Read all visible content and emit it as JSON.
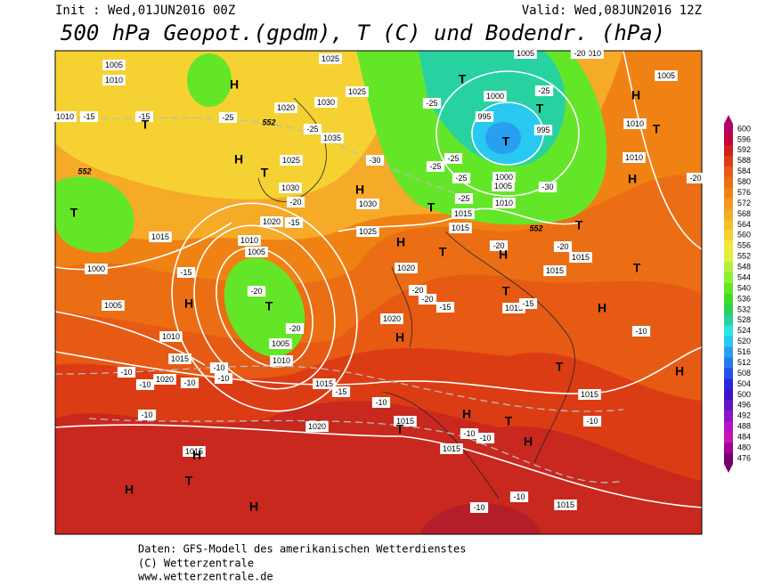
{
  "header": {
    "init": "Init : Wed,01JUN2016 00Z",
    "valid": "Valid: Wed,08JUN2016 12Z",
    "title": "500 hPa Geopot.(gpdm), T (C) und Bodendr. (hPa)"
  },
  "footer": [
    "Daten: GFS-Modell des amerikanischen Wetterdienstes",
    "(C) Wetterzentrale",
    "www.wetterzentrale.de"
  ],
  "legend": {
    "labels": [
      600,
      596,
      592,
      588,
      584,
      580,
      576,
      572,
      568,
      564,
      560,
      556,
      552,
      548,
      544,
      540,
      536,
      532,
      528,
      524,
      520,
      516,
      512,
      508,
      504,
      500,
      496,
      492,
      488,
      484,
      480,
      476
    ],
    "colors": [
      "#b40064",
      "#c8003c",
      "#d21e1e",
      "#dc3c14",
      "#e65a14",
      "#eb6e14",
      "#f08214",
      "#f5961e",
      "#f5aa28",
      "#f5be28",
      "#f5d232",
      "#f5e63c",
      "#dcf03c",
      "#b4f03c",
      "#8cf032",
      "#64e628",
      "#3cdc28",
      "#28d250",
      "#28d2a0",
      "#28e6e6",
      "#28c8f0",
      "#289ff0",
      "#2878f0",
      "#2850e6",
      "#2828dc",
      "#3c14c8",
      "#6414c8",
      "#8c14c8",
      "#b414c8",
      "#c814b4",
      "#a00096",
      "#78006e"
    ]
  },
  "map": {
    "pressure_labels": [
      "1005",
      "1010",
      "1010",
      "1025",
      "1025",
      "1030",
      "1035",
      "1025",
      "1030",
      "1020",
      "1020",
      "1015",
      "1010",
      "1005",
      "1000",
      "1005",
      "1010",
      "1015",
      "1020",
      "1010",
      "1005",
      "1015",
      "1020",
      "1015",
      "1015",
      "1015",
      "1020",
      "1020",
      "1015",
      "1015",
      "1015",
      "1015",
      "1015",
      "1010",
      "1010",
      "1005",
      "1000",
      "995",
      "995",
      "1000",
      "1005",
      "1010",
      "1030",
      "1025",
      "1015",
      "1005",
      "1010",
      "1015"
    ],
    "temperature_labels": [
      "-15",
      "-15",
      "-25",
      "-25",
      "-30",
      "-25",
      "-25",
      "-25",
      "-25",
      "-25",
      "-30",
      "-25",
      "-20",
      "-20",
      "-20",
      "-15",
      "-15",
      "-20",
      "-20",
      "-20",
      "-20",
      "-15",
      "-15",
      "-15",
      "-10",
      "-10",
      "-10",
      "-10",
      "-10",
      "-10",
      "-10",
      "-10",
      "-10",
      "-10",
      "-10",
      "-10",
      "-10",
      "-20",
      "-20"
    ],
    "height_labels": [
      "552",
      "552",
      "552"
    ],
    "system_labels": [
      "H",
      "H",
      "H",
      "H",
      "H",
      "H",
      "H",
      "H",
      "H",
      "H",
      "H",
      "H",
      "H",
      "H",
      "H",
      "H",
      "T",
      "T",
      "T",
      "T",
      "T",
      "T",
      "T",
      "T",
      "T",
      "T",
      "T",
      "T",
      "T",
      "T",
      "T",
      "T",
      "T"
    ]
  }
}
